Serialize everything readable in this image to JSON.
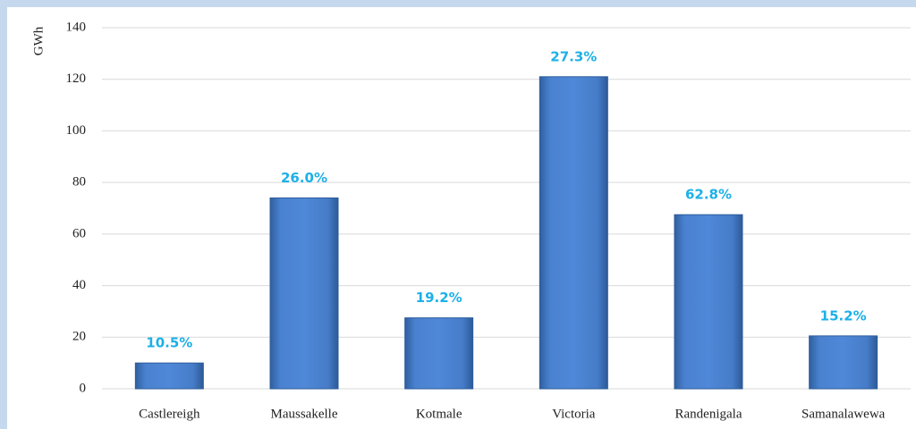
{
  "chart_data": {
    "type": "bar",
    "y_label": "GWh",
    "categories": [
      "Castlereigh",
      "Maussakelle",
      "Kotmale",
      "Victoria",
      "Randenigala",
      "Samanalawewa"
    ],
    "values": [
      10,
      74,
      27.5,
      121,
      67.5,
      20.5
    ],
    "bar_labels": [
      "10.5%",
      "26.0%",
      "19.2%",
      "27.3%",
      "62.8%",
      "15.2%"
    ],
    "color": "#4a82d0",
    "ylim": [
      0,
      140
    ],
    "yticks": [
      0,
      20,
      40,
      60,
      80,
      100,
      120,
      140
    ],
    "grid": true
  }
}
